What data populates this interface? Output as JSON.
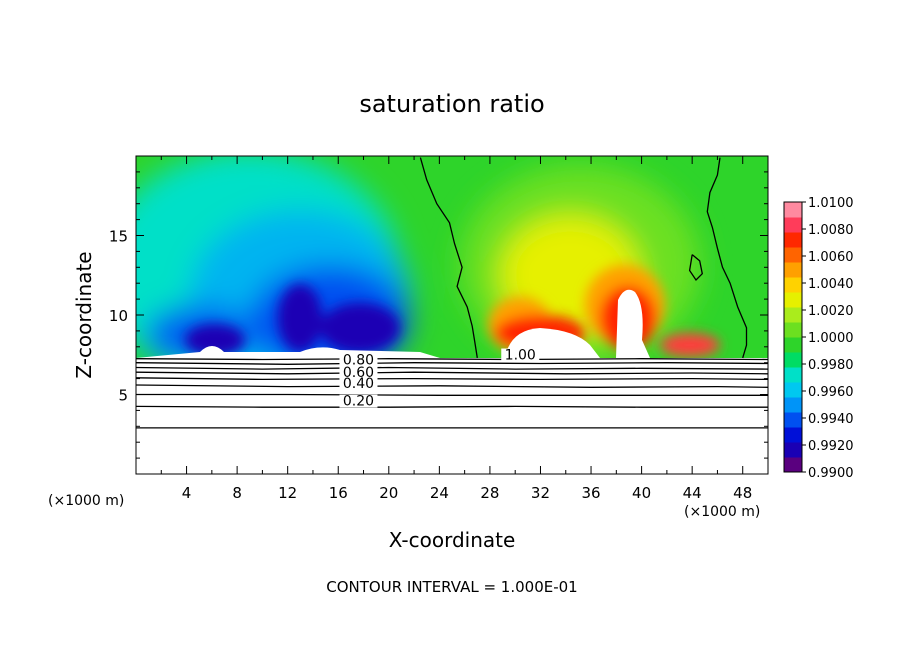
{
  "chart_data": {
    "type": "heatmap",
    "title": "saturation ratio",
    "xlabel": "X-coordinate",
    "ylabel": "Z-coordinate",
    "x_unit_label_left": "(×1000 m)",
    "x_unit_label_right": "(×1000 m)",
    "xlim": [
      0,
      50
    ],
    "ylim": [
      0,
      20
    ],
    "x_ticks": [
      "4",
      "8",
      "12",
      "16",
      "20",
      "24",
      "28",
      "32",
      "36",
      "40",
      "44",
      "48"
    ],
    "y_ticks": [
      "5",
      "10",
      "15"
    ],
    "footer": "CONTOUR INTERVAL = 1.000E-01",
    "colorbar": {
      "labels": [
        "1.0100",
        "1.0080",
        "1.0060",
        "1.0040",
        "1.0020",
        "1.0000",
        "0.9980",
        "0.9960",
        "0.9940",
        "0.9920",
        "0.9900"
      ],
      "min": 0.99,
      "max": 1.01,
      "colors": [
        "#5a007f",
        "#1a00b4",
        "#0010d8",
        "#0050f0",
        "#0094f8",
        "#00c8f0",
        "#00e0c8",
        "#00dc64",
        "#2ed42a",
        "#6ce020",
        "#aaec1c",
        "#e6f000",
        "#ffd200",
        "#ffa000",
        "#ff6400",
        "#ff2800",
        "#ff3c5a",
        "#ff8aa0"
      ]
    },
    "contour_labels": [
      {
        "text": "1.00",
        "x": 30.4,
        "y": 7.2
      },
      {
        "text": "0.80",
        "x": 17.6,
        "y": 6.9
      },
      {
        "text": "0.60",
        "x": 17.6,
        "y": 6.1
      },
      {
        "text": "0.40",
        "x": 17.6,
        "y": 5.4
      },
      {
        "text": "0.20",
        "x": 17.6,
        "y": 4.3
      }
    ],
    "contour_lines_below_cloud": [
      [
        [
          0,
          7.25
        ],
        [
          10,
          7.2
        ],
        [
          20,
          7.25
        ],
        [
          30,
          7.2
        ],
        [
          40,
          7.25
        ],
        [
          50,
          7.2
        ]
      ],
      [
        [
          0,
          7.0
        ],
        [
          12,
          6.9
        ],
        [
          22,
          7.0
        ],
        [
          32,
          6.95
        ],
        [
          42,
          7.0
        ],
        [
          50,
          6.95
        ]
      ],
      [
        [
          0,
          6.7
        ],
        [
          10,
          6.6
        ],
        [
          20,
          6.7
        ],
        [
          30,
          6.6
        ],
        [
          40,
          6.65
        ],
        [
          50,
          6.6
        ]
      ],
      [
        [
          0,
          6.4
        ],
        [
          12,
          6.3
        ],
        [
          22,
          6.4
        ],
        [
          34,
          6.3
        ],
        [
          44,
          6.35
        ],
        [
          50,
          6.3
        ]
      ],
      [
        [
          0,
          6.05
        ],
        [
          10,
          5.95
        ],
        [
          22,
          6.0
        ],
        [
          32,
          5.95
        ],
        [
          44,
          6.0
        ],
        [
          50,
          5.95
        ]
      ],
      [
        [
          0,
          5.6
        ],
        [
          12,
          5.5
        ],
        [
          24,
          5.55
        ],
        [
          36,
          5.45
        ],
        [
          46,
          5.5
        ],
        [
          50,
          5.45
        ]
      ],
      [
        [
          0,
          5.0
        ],
        [
          12,
          5.0
        ],
        [
          24,
          4.95
        ],
        [
          36,
          4.95
        ],
        [
          50,
          4.95
        ]
      ],
      [
        [
          0,
          4.25
        ],
        [
          10,
          4.2
        ],
        [
          20,
          4.2
        ],
        [
          30,
          4.25
        ],
        [
          40,
          4.2
        ],
        [
          50,
          4.2
        ]
      ],
      [
        [
          0,
          2.9
        ],
        [
          50,
          2.9
        ]
      ]
    ],
    "saturation_contour_left": [
      [
        22.5,
        19.9
      ],
      [
        23,
        18.5
      ],
      [
        23.8,
        17
      ],
      [
        24.8,
        15.8
      ],
      [
        25.2,
        14.5
      ],
      [
        25.8,
        13
      ],
      [
        25.4,
        11.8
      ],
      [
        26.2,
        10.5
      ],
      [
        26.6,
        9.3
      ],
      [
        26.8,
        8.3
      ],
      [
        27.0,
        7.3
      ]
    ],
    "saturation_contour_right": [
      [
        46.2,
        19.9
      ],
      [
        46,
        18.8
      ],
      [
        45.4,
        17.7
      ],
      [
        45.2,
        16.5
      ],
      [
        45.6,
        15.5
      ],
      [
        46,
        14.2
      ],
      [
        46.4,
        13
      ],
      [
        47,
        12
      ],
      [
        47.6,
        10.5
      ],
      [
        48.3,
        9.2
      ],
      [
        48.3,
        8.1
      ],
      [
        48.0,
        7.3
      ]
    ],
    "saturation_contour_loop": [
      [
        44.0,
        13.8
      ],
      [
        44.6,
        13.4
      ],
      [
        44.8,
        12.6
      ],
      [
        44.3,
        12.2
      ],
      [
        43.8,
        12.8
      ]
    ]
  }
}
